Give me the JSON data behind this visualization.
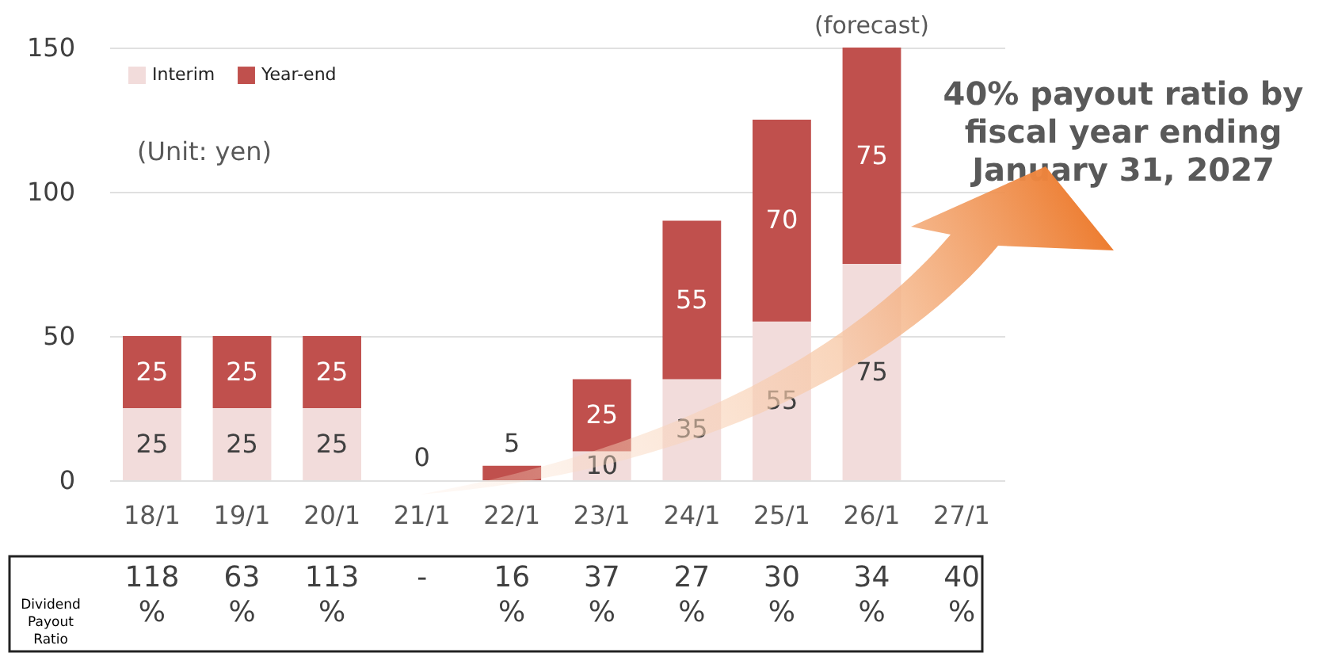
{
  "chart_data": {
    "type": "bar",
    "stacked": true,
    "categories": [
      "18/1",
      "19/1",
      "20/1",
      "21/1",
      "22/1",
      "23/1",
      "24/1",
      "25/1",
      "26/1",
      "27/1"
    ],
    "series": [
      {
        "name": "Interim",
        "color": "#f2dcdb",
        "values": [
          25,
          25,
          25,
          0,
          0,
          10,
          35,
          55,
          75,
          null
        ],
        "value_labels": [
          "25",
          "25",
          "25",
          "0",
          null,
          "10",
          "35",
          "55",
          "75",
          null
        ]
      },
      {
        "name": "Year-end",
        "color": "#c0504d",
        "values": [
          25,
          25,
          25,
          0,
          5,
          25,
          55,
          70,
          75,
          null
        ],
        "value_labels": [
          "25",
          "25",
          "25",
          null,
          "5",
          "25",
          "55",
          "70",
          "75",
          null
        ]
      }
    ],
    "ylim": [
      0,
      150
    ],
    "yticks": [
      0,
      50,
      100,
      150
    ],
    "grid": "y",
    "legend": "top left",
    "annotations": [
      "(Unit: yen)",
      "40% payout ratio by fiscal year ending January 31, 2027",
      "Dividend Payout Ratio",
      {
        "text": "(forecast)",
        "x": "26/1",
        "y": 150
      },
      "118 %",
      "63 %",
      "113 %",
      "-",
      "16 %",
      "37 %",
      "27 %",
      "30 %",
      "34 %",
      "40 %"
    ]
  }
}
